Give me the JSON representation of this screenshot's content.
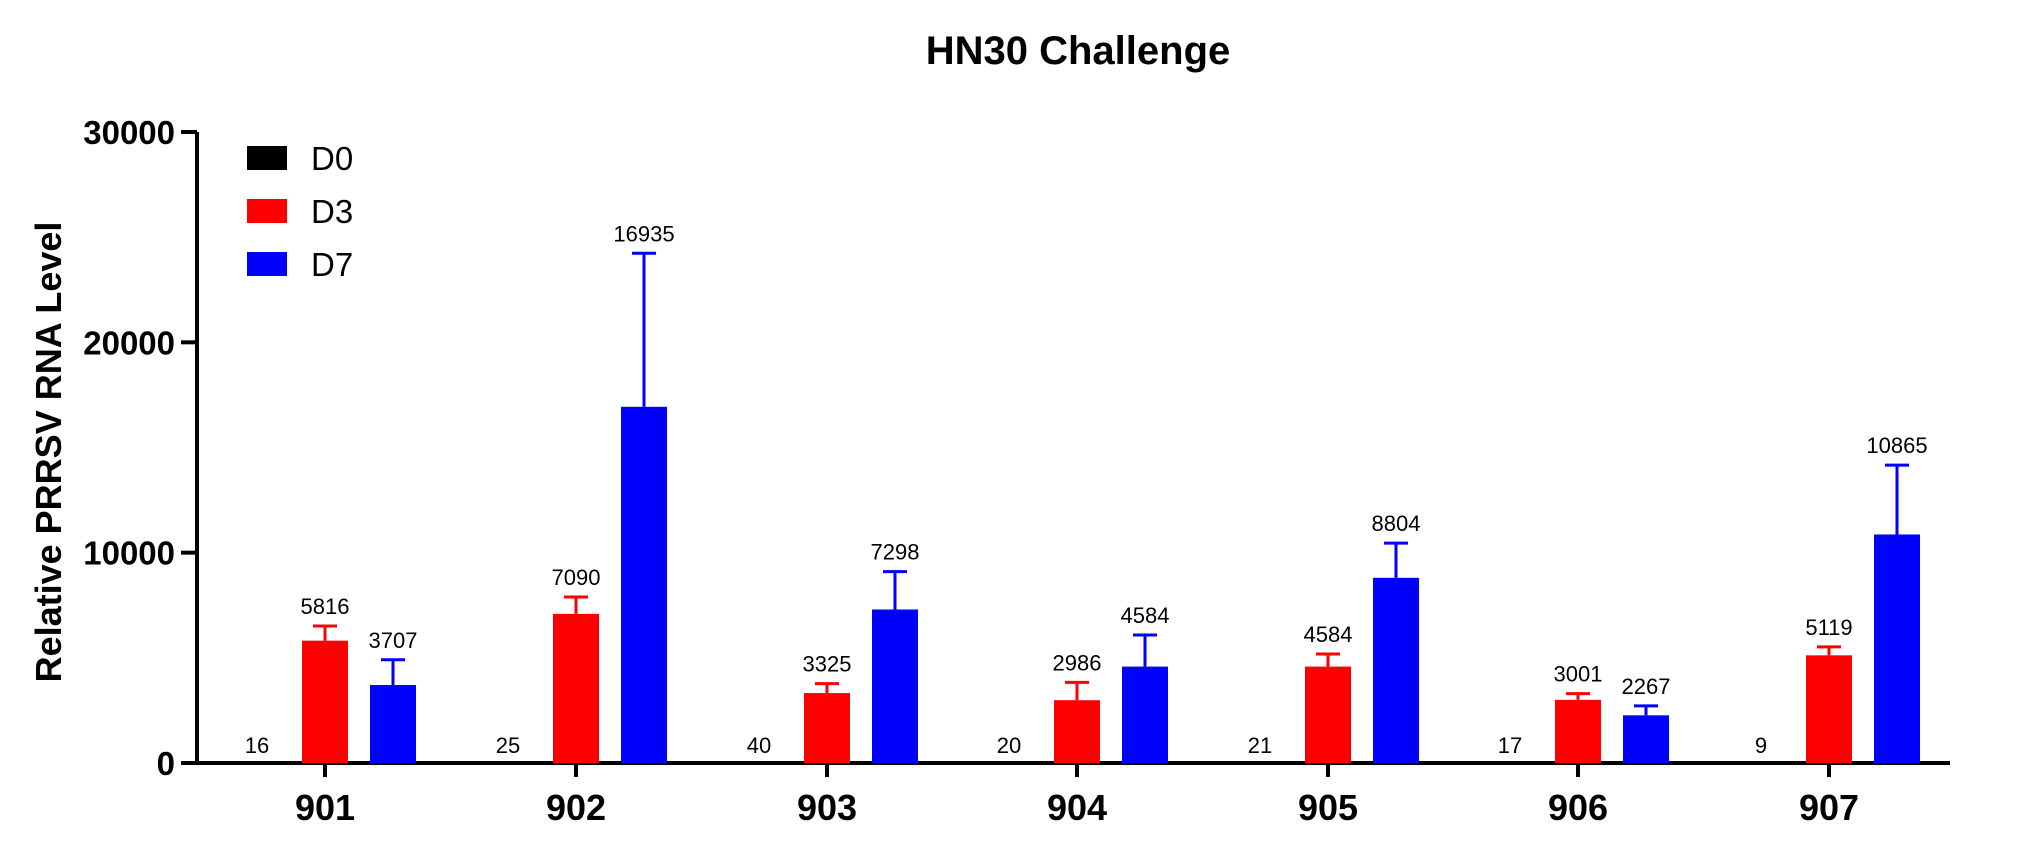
{
  "chart_data": {
    "type": "bar",
    "title": "HN30 Challenge",
    "xlabel": "",
    "ylabel": "Relative PRRSV RNA Level",
    "ylim": [
      0,
      30000
    ],
    "yticks": [
      "0",
      "10000",
      "20000",
      "30000"
    ],
    "categories": [
      "901",
      "902",
      "903",
      "904",
      "905",
      "906",
      "907"
    ],
    "legend_position": "top-left",
    "grid": false,
    "series": [
      {
        "name": "D0",
        "color": "#000000",
        "values": [
          16,
          25,
          40,
          20,
          21,
          17,
          9
        ],
        "errors": [
          0,
          0,
          0,
          0,
          0,
          0,
          0
        ],
        "labels": [
          "16",
          "25",
          "40",
          "20",
          "21",
          "17",
          "9"
        ]
      },
      {
        "name": "D3",
        "color": "#ff0000",
        "values": [
          5816,
          7090,
          3325,
          2986,
          4584,
          3001,
          5119
        ],
        "errors": [
          700,
          800,
          450,
          850,
          600,
          300,
          400
        ],
        "labels": [
          "5816",
          "7090",
          "3325",
          "2986",
          "4584",
          "3001",
          "5119"
        ]
      },
      {
        "name": "D7",
        "color": "#0000ff",
        "values": [
          3707,
          16935,
          7298,
          4584,
          8804,
          2267,
          10865
        ],
        "errors": [
          1200,
          7300,
          1800,
          1500,
          1650,
          450,
          3300
        ],
        "labels": [
          "3707",
          "16935",
          "7298",
          "4584",
          "8804",
          "2267",
          "10865"
        ]
      }
    ]
  }
}
